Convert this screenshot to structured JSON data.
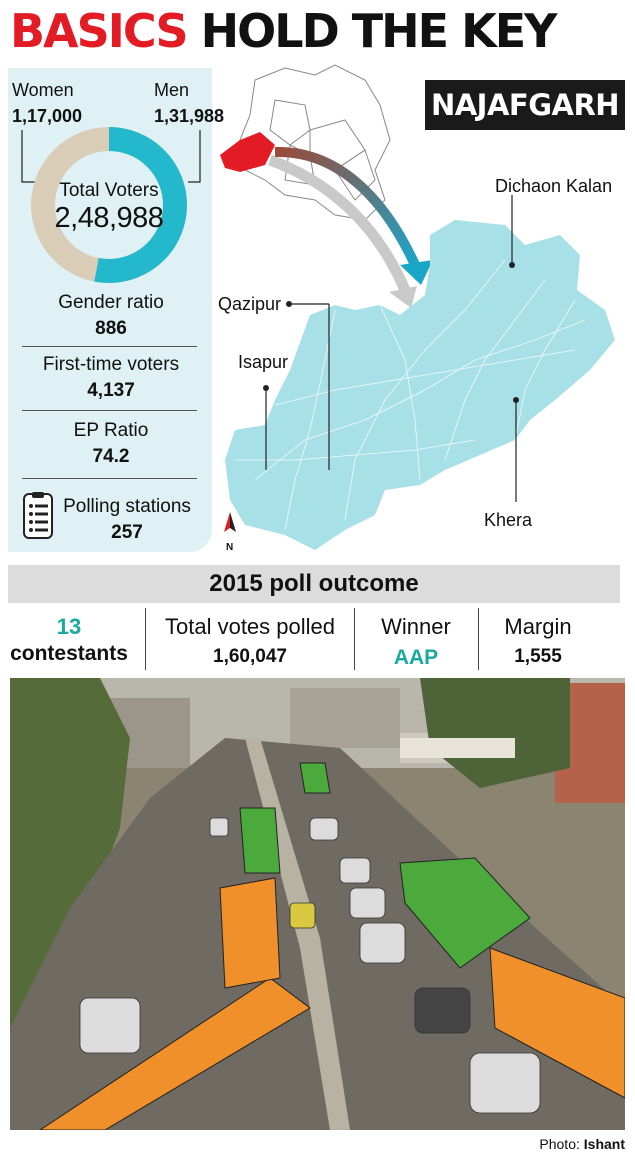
{
  "headline": {
    "part1": "BASICS",
    "part2": "HOLD THE KEY"
  },
  "constituency": "NAJAFGARH",
  "voters": {
    "women_label": "Women",
    "women_value": "1,17,000",
    "men_label": "Men",
    "men_value": "1,31,988",
    "total_label": "Total Voters",
    "total_value": "2,48,988",
    "women_color": "#d9cdb8",
    "men_color": "#23b8cb"
  },
  "stats": {
    "gender_ratio_label": "Gender ratio",
    "gender_ratio_value": "886",
    "first_time_label": "First-time voters",
    "first_time_value": "4,137",
    "ep_ratio_label": "EP Ratio",
    "ep_ratio_value": "74.2",
    "polling_label": "Polling stations",
    "polling_value": "257",
    "polling_icon": "clipboard-list-icon"
  },
  "map": {
    "places": {
      "dichaon": "Dichaon Kalan",
      "qazipur": "Qazipur",
      "isapur": "Isapur",
      "khera": "Khera"
    },
    "north": "N",
    "highlight_color": "#e21b24",
    "area_color": "#a8e0e8"
  },
  "outcome": {
    "header": "2015 poll outcome",
    "contestants_count": "13",
    "contestants_label": "contestants",
    "total_votes_label": "Total votes polled",
    "total_votes_value": "1,60,047",
    "winner_label": "Winner",
    "winner_value": "AAP",
    "margin_label": "Margin",
    "margin_value": "1,555",
    "accent": "#19a99d"
  },
  "photo": {
    "credit_label": "Photo:",
    "credit_name": "Ishant"
  }
}
